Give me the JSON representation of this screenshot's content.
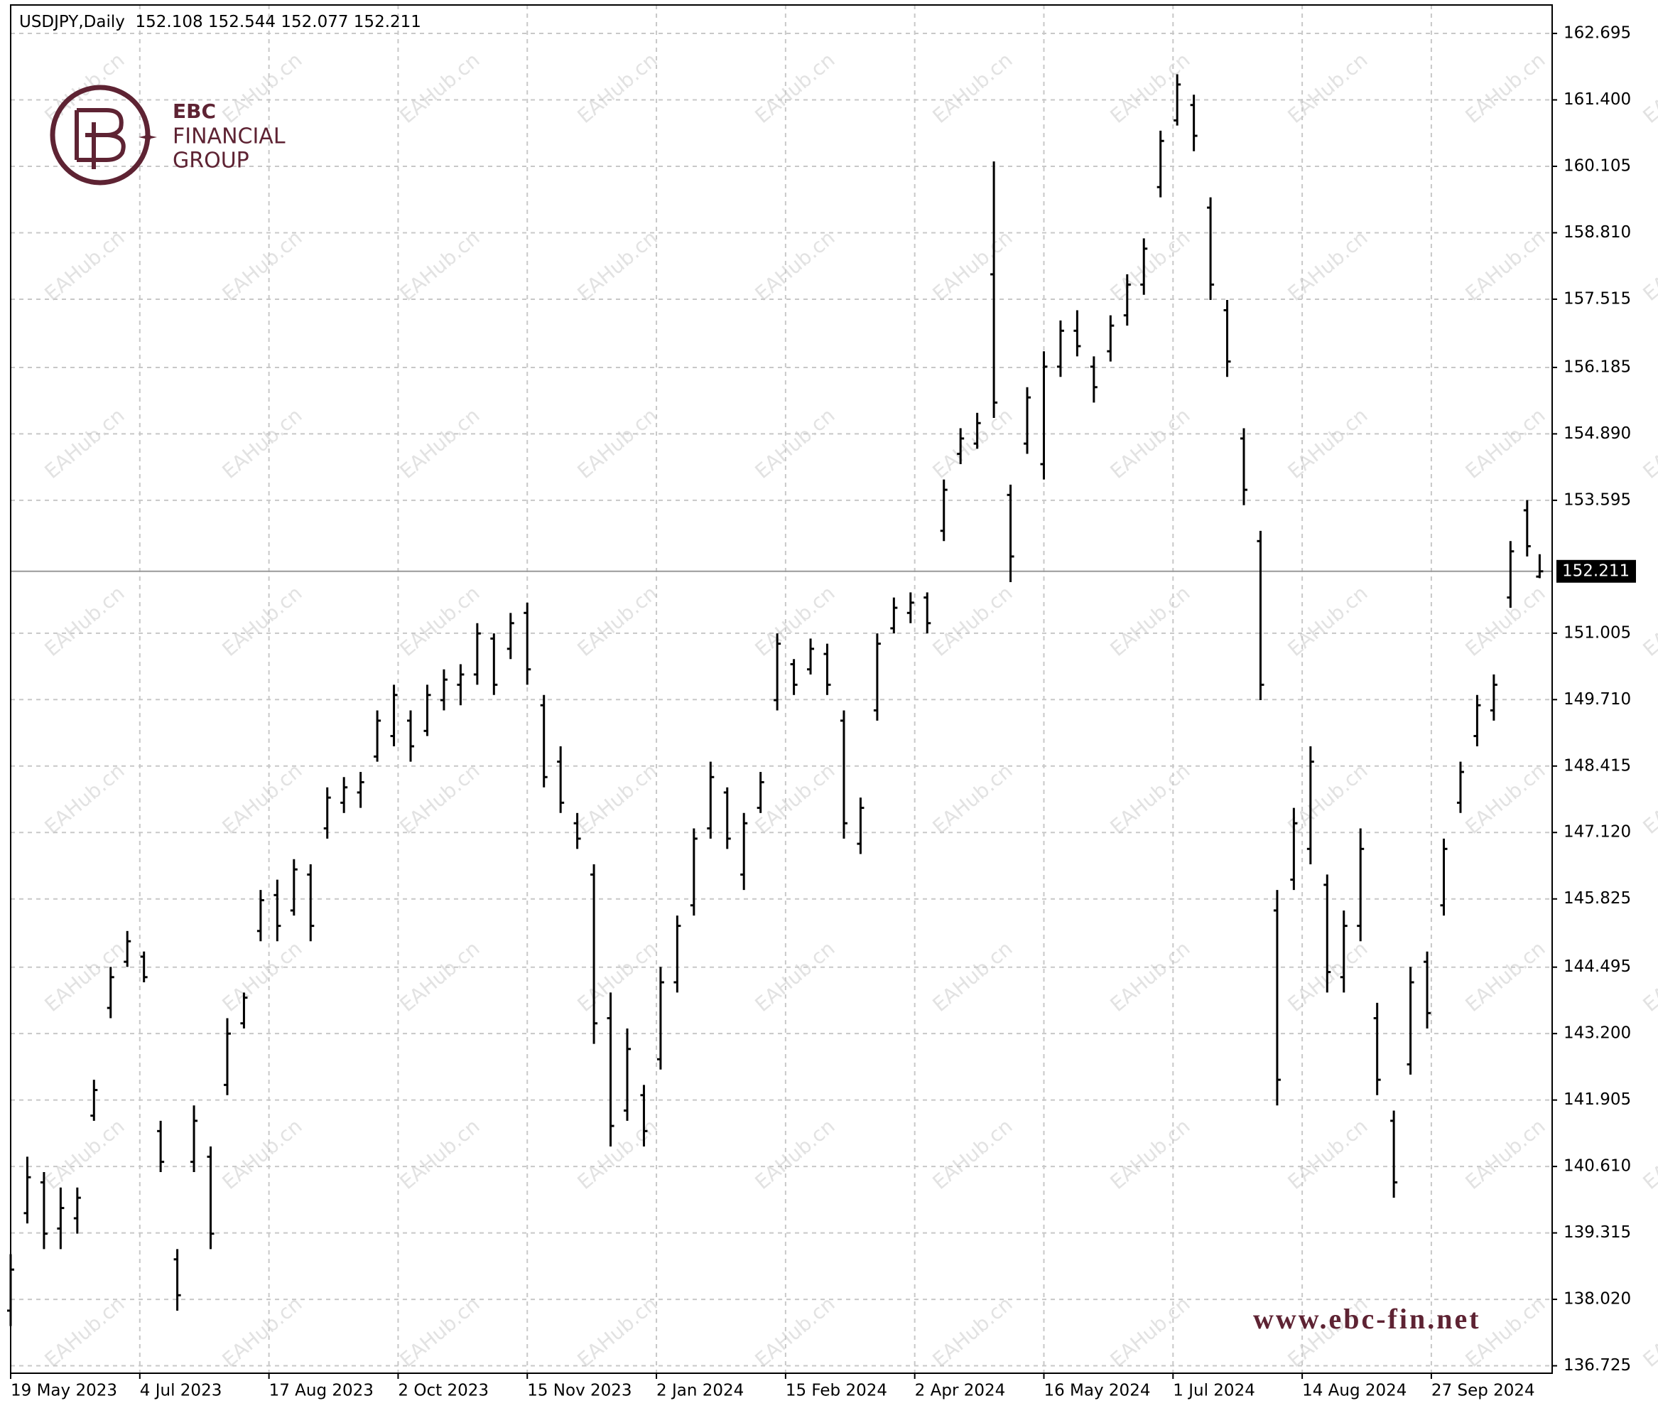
{
  "chart_data": {
    "type": "ohlc",
    "title": "USDJPY,Daily",
    "color": "#000000",
    "grid": true,
    "current_price_line": true,
    "x": [
      0,
      4,
      8,
      12,
      16,
      20,
      24,
      28,
      32,
      36,
      40,
      44,
      48,
      52,
      56,
      60,
      64,
      68,
      72,
      76,
      80,
      84,
      88,
      92,
      96,
      100,
      104,
      108,
      112,
      116,
      120,
      124,
      128,
      132,
      136,
      140,
      144,
      148,
      152,
      156,
      160,
      164,
      168,
      172,
      176,
      180,
      184,
      188,
      192,
      196,
      200,
      204,
      208,
      212,
      216,
      220,
      224,
      228,
      232,
      236,
      240,
      244,
      248,
      252,
      256,
      260,
      264,
      268,
      272,
      276,
      280,
      284,
      288,
      292,
      296,
      300,
      304,
      308,
      312,
      316,
      320,
      324,
      328,
      332,
      336,
      340,
      344,
      348,
      352,
      356,
      360,
      364,
      367
    ],
    "open": [
      137.8,
      139.7,
      140.3,
      139.4,
      139.6,
      141.6,
      143.7,
      144.6,
      144.7,
      141.3,
      138.8,
      140.7,
      140.8,
      142.2,
      143.4,
      145.2,
      145.9,
      145.6,
      146.3,
      147.2,
      147.7,
      147.9,
      148.6,
      149.0,
      149.3,
      149.1,
      149.7,
      150.0,
      150.2,
      150.9,
      150.7,
      151.4,
      149.6,
      148.5,
      147.3,
      146.3,
      143.5,
      141.7,
      142.0,
      142.7,
      144.2,
      145.7,
      147.2,
      147.9,
      146.3,
      147.6,
      149.7,
      150.4,
      150.3,
      150.6,
      149.3,
      146.9,
      149.5,
      151.1,
      151.4,
      151.7,
      153.0,
      154.5,
      154.7,
      158.0,
      153.7,
      154.7,
      154.3,
      156.2,
      156.9,
      156.2,
      156.5,
      157.2,
      157.8,
      159.7,
      161.0,
      161.3,
      159.3,
      157.3,
      154.8,
      152.8,
      145.6,
      146.2,
      146.8,
      146.1,
      144.3,
      145.3,
      143.5,
      141.5,
      142.6,
      144.6,
      145.7,
      147.7,
      149.0,
      149.5,
      151.7,
      153.4,
      152.108
    ],
    "high": [
      138.9,
      140.8,
      140.5,
      140.2,
      140.2,
      142.3,
      144.5,
      145.2,
      144.8,
      141.5,
      139.0,
      141.8,
      141.0,
      143.5,
      144.0,
      146.0,
      146.2,
      146.6,
      146.5,
      148.0,
      148.2,
      148.3,
      149.5,
      150.0,
      149.5,
      150.0,
      150.3,
      150.4,
      151.2,
      151.0,
      151.4,
      151.6,
      149.8,
      148.8,
      147.5,
      146.5,
      144.0,
      143.3,
      142.2,
      144.5,
      145.5,
      147.2,
      148.5,
      148.0,
      147.5,
      148.3,
      151.0,
      150.5,
      150.9,
      150.8,
      149.5,
      147.8,
      151.0,
      151.7,
      151.8,
      151.8,
      154.0,
      155.0,
      155.3,
      160.2,
      153.9,
      155.8,
      156.5,
      157.1,
      157.3,
      156.4,
      157.2,
      158.0,
      158.7,
      160.8,
      161.9,
      161.5,
      159.5,
      157.5,
      155.0,
      153.0,
      146.0,
      147.6,
      148.8,
      146.3,
      145.6,
      147.2,
      143.8,
      141.7,
      144.5,
      144.8,
      147.0,
      148.5,
      149.8,
      150.2,
      152.8,
      153.6,
      152.544
    ],
    "low": [
      137.5,
      139.5,
      139.0,
      139.0,
      139.3,
      141.5,
      143.5,
      144.5,
      144.2,
      140.5,
      137.8,
      140.5,
      139.0,
      142.0,
      143.3,
      145.0,
      145.0,
      145.5,
      145.0,
      147.0,
      147.5,
      147.6,
      148.5,
      148.8,
      148.5,
      149.0,
      149.5,
      149.6,
      150.0,
      149.8,
      150.5,
      150.0,
      148.0,
      147.5,
      146.8,
      143.0,
      141.0,
      141.5,
      141.0,
      142.5,
      144.0,
      145.5,
      147.0,
      146.8,
      146.0,
      147.5,
      149.5,
      149.8,
      150.2,
      149.8,
      147.0,
      146.7,
      149.3,
      151.0,
      151.2,
      151.0,
      152.8,
      154.3,
      154.6,
      155.2,
      152.0,
      154.5,
      154.0,
      156.0,
      156.4,
      155.5,
      156.3,
      157.0,
      157.6,
      159.5,
      160.9,
      160.4,
      157.5,
      156.0,
      153.5,
      149.7,
      141.8,
      146.0,
      146.5,
      144.0,
      144.0,
      145.0,
      142.0,
      140.0,
      142.4,
      143.3,
      145.5,
      147.5,
      148.8,
      149.3,
      151.5,
      152.5,
      152.077
    ],
    "close": [
      138.6,
      140.4,
      139.3,
      139.8,
      140.0,
      142.1,
      144.3,
      145.0,
      144.3,
      140.7,
      138.1,
      141.5,
      139.3,
      143.2,
      143.9,
      145.8,
      145.3,
      146.4,
      145.3,
      147.8,
      148.0,
      148.1,
      149.3,
      149.8,
      148.8,
      149.8,
      150.1,
      150.2,
      151.0,
      150.0,
      151.2,
      150.3,
      148.2,
      147.7,
      147.0,
      143.4,
      141.4,
      142.9,
      141.3,
      144.2,
      145.3,
      147.0,
      148.2,
      147.0,
      147.3,
      148.1,
      150.8,
      150.0,
      150.7,
      150.0,
      147.3,
      147.6,
      150.8,
      151.5,
      151.6,
      151.2,
      153.8,
      154.8,
      155.1,
      155.5,
      152.5,
      155.6,
      156.2,
      156.9,
      156.6,
      155.8,
      157.0,
      157.8,
      158.5,
      160.6,
      161.7,
      160.7,
      157.8,
      156.3,
      153.8,
      150.0,
      142.3,
      147.3,
      148.5,
      144.4,
      145.3,
      146.8,
      142.3,
      140.3,
      144.2,
      143.6,
      146.8,
      148.3,
      149.6,
      150.0,
      152.6,
      152.7,
      152.211
    ],
    "xlim": [
      0,
      370
    ],
    "xticks": [
      {
        "value": 0,
        "label": "19 May 2023"
      },
      {
        "value": 31,
        "label": "4 Jul 2023"
      },
      {
        "value": 62,
        "label": "17 Aug 2023"
      },
      {
        "value": 93,
        "label": "2 Oct 2023"
      },
      {
        "value": 124,
        "label": "15 Nov 2023"
      },
      {
        "value": 155,
        "label": "2 Jan 2024"
      },
      {
        "value": 186,
        "label": "15 Feb 2024"
      },
      {
        "value": 217,
        "label": "2 Apr 2024"
      },
      {
        "value": 248,
        "label": "16 May 2024"
      },
      {
        "value": 279,
        "label": "1 Jul 2024"
      },
      {
        "value": 310,
        "label": "14 Aug 2024"
      },
      {
        "value": 341,
        "label": "27 Sep 2024"
      }
    ],
    "ylim": [
      136.58,
      163.25
    ],
    "yticks": [
      162.695,
      {
        "value": 161.4,
        "label": "161.400"
      },
      160.105,
      {
        "value": 158.81,
        "label": "158.810"
      },
      157.515,
      156.185,
      {
        "value": 154.89,
        "label": "154.890"
      },
      153.595,
      151.005,
      {
        "value": 149.71,
        "label": "149.710"
      },
      148.415,
      {
        "value": 147.12,
        "label": "147.120"
      },
      145.825,
      144.495,
      {
        "value": 143.2,
        "label": "143.200"
      },
      141.905,
      {
        "value": 140.61,
        "label": "140.610"
      },
      139.315,
      {
        "value": 138.02,
        "label": "138.020"
      },
      136.725
    ]
  },
  "branding": {
    "logo_lines": [
      "EBC",
      "FINANCIAL",
      "GROUP"
    ],
    "url": "www.ebc-fin.net",
    "watermark": "EAHub.cn"
  }
}
